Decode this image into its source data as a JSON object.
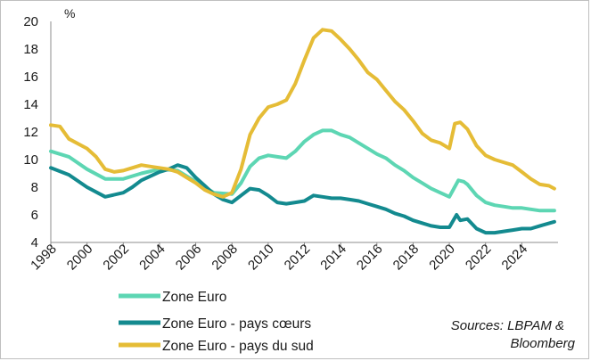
{
  "chart_data": {
    "type": "line",
    "unit_label": "%",
    "xlim": [
      1998,
      2026
    ],
    "ylim": [
      4,
      20
    ],
    "ytick_labels": [
      "4",
      "6",
      "8",
      "10",
      "12",
      "14",
      "16",
      "18",
      "20"
    ],
    "xtick_labels": [
      "1998",
      "2000",
      "2002",
      "2004",
      "2006",
      "2008",
      "2010",
      "2012",
      "2014",
      "2016",
      "2018",
      "2020",
      "2022",
      "2024"
    ],
    "series": [
      {
        "name": "Zone Euro",
        "color": "#5dd6b3",
        "points": [
          [
            1998,
            10.6
          ],
          [
            1999,
            10.2
          ],
          [
            2000,
            9.3
          ],
          [
            2001,
            8.6
          ],
          [
            2002,
            8.6
          ],
          [
            2003,
            9.0
          ],
          [
            2004,
            9.3
          ],
          [
            2005,
            9.2
          ],
          [
            2006,
            8.4
          ],
          [
            2007,
            7.6
          ],
          [
            2008,
            7.5
          ],
          [
            2008.5,
            8.3
          ],
          [
            2009,
            9.5
          ],
          [
            2009.5,
            10.1
          ],
          [
            2010,
            10.3
          ],
          [
            2010.5,
            10.2
          ],
          [
            2011,
            10.1
          ],
          [
            2011.5,
            10.6
          ],
          [
            2012,
            11.3
          ],
          [
            2012.5,
            11.8
          ],
          [
            2013,
            12.1
          ],
          [
            2013.5,
            12.1
          ],
          [
            2014,
            11.8
          ],
          [
            2014.5,
            11.6
          ],
          [
            2015,
            11.2
          ],
          [
            2015.5,
            10.8
          ],
          [
            2016,
            10.4
          ],
          [
            2016.5,
            10.1
          ],
          [
            2017,
            9.6
          ],
          [
            2017.5,
            9.2
          ],
          [
            2018,
            8.7
          ],
          [
            2018.5,
            8.3
          ],
          [
            2019,
            7.9
          ],
          [
            2019.5,
            7.6
          ],
          [
            2020,
            7.3
          ],
          [
            2020.5,
            8.5
          ],
          [
            2020.8,
            8.4
          ],
          [
            2021,
            8.2
          ],
          [
            2021.5,
            7.4
          ],
          [
            2022,
            6.9
          ],
          [
            2022.5,
            6.7
          ],
          [
            2023,
            6.6
          ],
          [
            2023.5,
            6.5
          ],
          [
            2024,
            6.5
          ],
          [
            2024.5,
            6.4
          ],
          [
            2025,
            6.3
          ],
          [
            2025.8,
            6.3
          ]
        ]
      },
      {
        "name": "Zone Euro - pays cœurs",
        "color": "#138a8f",
        "points": [
          [
            1998,
            9.4
          ],
          [
            1999,
            8.9
          ],
          [
            2000,
            8.0
          ],
          [
            2001,
            7.3
          ],
          [
            2002,
            7.6
          ],
          [
            2002.5,
            8.0
          ],
          [
            2003,
            8.5
          ],
          [
            2004,
            9.1
          ],
          [
            2004.5,
            9.3
          ],
          [
            2005,
            9.6
          ],
          [
            2005.5,
            9.4
          ],
          [
            2006,
            8.7
          ],
          [
            2006.5,
            8.1
          ],
          [
            2007,
            7.5
          ],
          [
            2007.5,
            7.1
          ],
          [
            2008,
            6.9
          ],
          [
            2008.5,
            7.4
          ],
          [
            2009,
            7.9
          ],
          [
            2009.5,
            7.8
          ],
          [
            2010,
            7.4
          ],
          [
            2010.5,
            6.9
          ],
          [
            2011,
            6.8
          ],
          [
            2011.5,
            6.9
          ],
          [
            2012,
            7.0
          ],
          [
            2012.5,
            7.4
          ],
          [
            2013,
            7.3
          ],
          [
            2013.5,
            7.2
          ],
          [
            2014,
            7.2
          ],
          [
            2014.5,
            7.1
          ],
          [
            2015,
            7.0
          ],
          [
            2015.5,
            6.8
          ],
          [
            2016,
            6.6
          ],
          [
            2016.5,
            6.4
          ],
          [
            2017,
            6.1
          ],
          [
            2017.5,
            5.9
          ],
          [
            2018,
            5.6
          ],
          [
            2018.5,
            5.4
          ],
          [
            2019,
            5.2
          ],
          [
            2019.5,
            5.1
          ],
          [
            2020,
            5.1
          ],
          [
            2020.4,
            6.0
          ],
          [
            2020.6,
            5.6
          ],
          [
            2021,
            5.7
          ],
          [
            2021.5,
            5.0
          ],
          [
            2022,
            4.7
          ],
          [
            2022.5,
            4.7
          ],
          [
            2023,
            4.8
          ],
          [
            2023.5,
            4.9
          ],
          [
            2024,
            5.0
          ],
          [
            2024.5,
            5.0
          ],
          [
            2025,
            5.2
          ],
          [
            2025.8,
            5.5
          ]
        ]
      },
      {
        "name": "Zone Euro - pays du sud",
        "color": "#e5bc36",
        "points": [
          [
            1998,
            12.5
          ],
          [
            1998.5,
            12.4
          ],
          [
            1999,
            11.5
          ],
          [
            2000,
            10.8
          ],
          [
            2000.5,
            10.2
          ],
          [
            2001,
            9.3
          ],
          [
            2001.5,
            9.1
          ],
          [
            2002,
            9.2
          ],
          [
            2002.5,
            9.4
          ],
          [
            2003,
            9.6
          ],
          [
            2003.5,
            9.5
          ],
          [
            2004,
            9.4
          ],
          [
            2004.5,
            9.3
          ],
          [
            2005,
            9.1
          ],
          [
            2005.5,
            8.7
          ],
          [
            2006,
            8.3
          ],
          [
            2006.5,
            7.8
          ],
          [
            2007,
            7.5
          ],
          [
            2007.5,
            7.3
          ],
          [
            2008,
            7.6
          ],
          [
            2008.5,
            9.3
          ],
          [
            2009,
            11.8
          ],
          [
            2009.5,
            13.0
          ],
          [
            2010,
            13.8
          ],
          [
            2010.5,
            14.0
          ],
          [
            2011,
            14.3
          ],
          [
            2011.5,
            15.5
          ],
          [
            2012,
            17.2
          ],
          [
            2012.5,
            18.8
          ],
          [
            2013,
            19.4
          ],
          [
            2013.5,
            19.3
          ],
          [
            2014,
            18.7
          ],
          [
            2014.5,
            18.0
          ],
          [
            2015,
            17.2
          ],
          [
            2015.5,
            16.3
          ],
          [
            2016,
            15.8
          ],
          [
            2016.5,
            15.0
          ],
          [
            2017,
            14.2
          ],
          [
            2017.5,
            13.6
          ],
          [
            2018,
            12.8
          ],
          [
            2018.5,
            11.9
          ],
          [
            2019,
            11.4
          ],
          [
            2019.5,
            11.2
          ],
          [
            2020,
            10.8
          ],
          [
            2020.3,
            12.6
          ],
          [
            2020.6,
            12.7
          ],
          [
            2021,
            12.2
          ],
          [
            2021.5,
            11.0
          ],
          [
            2022,
            10.3
          ],
          [
            2022.5,
            10.0
          ],
          [
            2023,
            9.8
          ],
          [
            2023.5,
            9.6
          ],
          [
            2024,
            9.1
          ],
          [
            2024.5,
            8.6
          ],
          [
            2025,
            8.2
          ],
          [
            2025.5,
            8.1
          ],
          [
            2025.8,
            7.9
          ]
        ]
      }
    ],
    "legend": [
      "Zone Euro",
      "Zone Euro - pays cœurs",
      "Zone Euro - pays du sud"
    ],
    "source_line1": "Sources: LBPAM &",
    "source_line2": "Bloomberg"
  }
}
